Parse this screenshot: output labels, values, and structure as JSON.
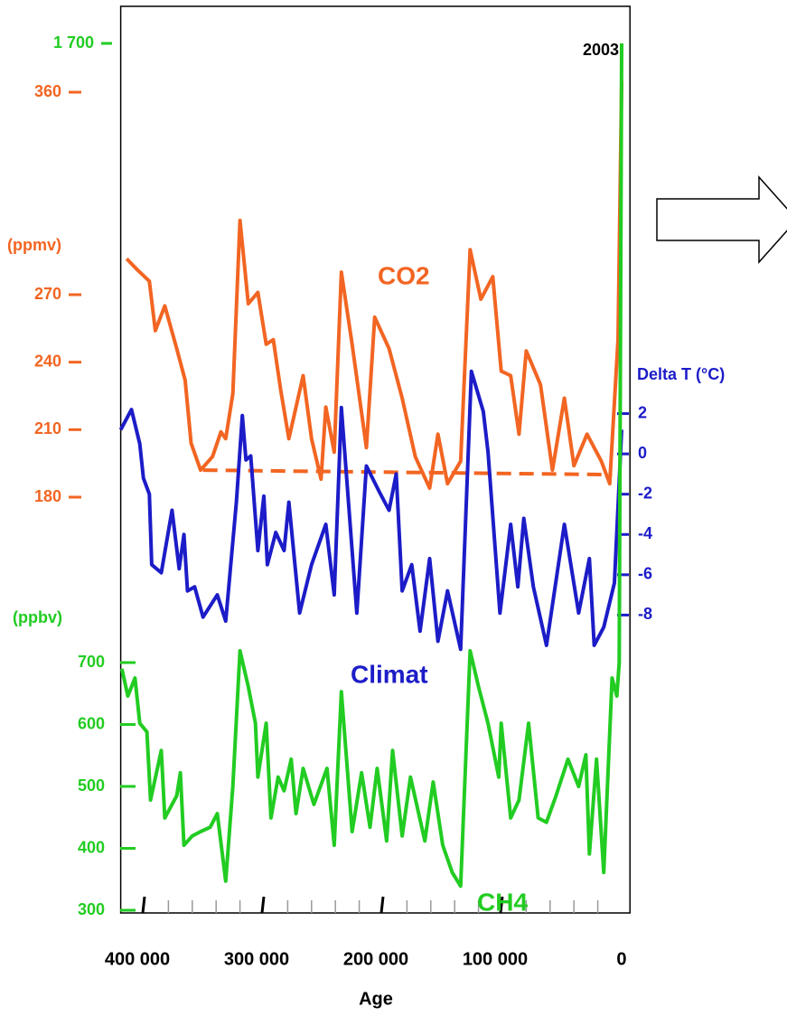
{
  "chart_data": {
    "type": "line",
    "x_label": "Age",
    "end_label": "2003",
    "xlim": [
      420000,
      -7000
    ],
    "xticks": [
      {
        "value": 400000,
        "label": "400 000"
      },
      {
        "value": 300000,
        "label": "300 000"
      },
      {
        "value": 200000,
        "label": "200 000"
      },
      {
        "value": 100000,
        "label": "100 000"
      },
      0
    ],
    "xminor_ticks": [
      380000,
      360000,
      340000,
      320000,
      280000,
      260000,
      240000,
      220000,
      180000,
      160000,
      140000,
      120000,
      80000,
      60000,
      40000,
      20000
    ],
    "axes": {
      "co2": {
        "unit_label": "(ppmv)",
        "ylim": [
          180,
          360
        ],
        "yticks": [
          180,
          210,
          240,
          270,
          360
        ]
      },
      "ch4": {
        "unit_label": "(ppbv)",
        "ylim": [
          300,
          1700
        ],
        "axis_break": 700,
        "yticks": [
          300,
          400,
          500,
          600,
          700,
          {
            "value": 1700,
            "label": "1 700"
          }
        ]
      },
      "temp": {
        "unit_label": "Delta T (°C)",
        "ylim": [
          -10,
          4
        ],
        "yticks": [
          2,
          0,
          -2,
          -4,
          -6,
          -8
        ]
      }
    },
    "series": [
      {
        "name": "CO2",
        "color": "#f26522",
        "axis": "co2",
        "x": [
          415000,
          406000,
          396000,
          391000,
          383000,
          373000,
          366000,
          361000,
          353000,
          343000,
          336000,
          332000,
          326000,
          320000,
          313000,
          305000,
          298000,
          292000,
          286000,
          279000,
          267000,
          260000,
          252000,
          248000,
          241000,
          235000,
          226000,
          214000,
          207000,
          195000,
          184000,
          173000,
          161000,
          154000,
          146000,
          135000,
          127000,
          118000,
          108000,
          101000,
          93000,
          86000,
          80000,
          68000,
          58000,
          48000,
          40000,
          29000,
          17000,
          10000,
          3000,
          0
        ],
        "values": [
          286,
          281,
          276,
          254,
          265,
          246,
          232,
          204,
          192,
          198,
          209,
          206,
          226,
          303,
          266,
          271,
          248,
          250,
          228,
          206,
          234,
          206,
          188,
          220,
          200,
          280,
          248,
          202,
          260,
          246,
          224,
          198,
          184,
          208,
          186,
          196,
          290,
          268,
          278,
          236,
          234,
          208,
          245,
          230,
          192,
          224,
          194,
          208,
          196,
          186,
          250,
          365
        ],
        "baseline_x": [
          351000,
          8000
        ],
        "baseline_values": [
          192,
          190
        ]
      },
      {
        "name": "Climat",
        "color": "#1c1cc8",
        "axis": "temp",
        "x": [
          420000,
          411000,
          404000,
          401000,
          396000,
          394000,
          386000,
          377000,
          371000,
          367000,
          364000,
          358000,
          351000,
          339000,
          332000,
          323000,
          318000,
          315000,
          311000,
          305000,
          300000,
          297000,
          290000,
          283000,
          279000,
          270000,
          260000,
          248000,
          241000,
          235000,
          222000,
          214000,
          203000,
          195000,
          189000,
          184000,
          176000,
          169000,
          161000,
          154000,
          146000,
          135000,
          126000,
          116000,
          112000,
          102000,
          93000,
          87000,
          82000,
          74000,
          63000,
          48000,
          36000,
          27000,
          23000,
          15000,
          6000,
          0
        ],
        "values": [
          1.2,
          2.2,
          0.5,
          -1.2,
          -2.0,
          -5.5,
          -5.9,
          -2.8,
          -5.7,
          -4.0,
          -6.8,
          -6.6,
          -8.1,
          -7.0,
          -8.3,
          -2.4,
          1.9,
          -0.3,
          -0.1,
          -4.8,
          -2.1,
          -5.5,
          -3.9,
          -4.8,
          -2.4,
          -7.9,
          -5.5,
          -3.5,
          -7.0,
          2.3,
          -7.9,
          -0.6,
          -1.9,
          -2.8,
          -1.0,
          -6.8,
          -5.5,
          -8.8,
          -5.2,
          -9.3,
          -6.8,
          -9.7,
          4.1,
          2.1,
          0.1,
          -7.9,
          -3.5,
          -6.6,
          -3.2,
          -6.6,
          -9.5,
          -3.5,
          -7.9,
          -5.2,
          -9.5,
          -8.6,
          -6.4,
          1.2
        ]
      },
      {
        "name": "CH4",
        "color": "#22cc22",
        "axis": "ch4",
        "x": [
          419000,
          414000,
          408000,
          404000,
          398000,
          395000,
          386000,
          383000,
          373000,
          370000,
          367000,
          360000,
          353000,
          345000,
          339000,
          332000,
          326000,
          320000,
          313000,
          307000,
          305000,
          298000,
          294000,
          288000,
          283000,
          277000,
          273000,
          267000,
          258000,
          247000,
          241000,
          235000,
          226000,
          218000,
          211000,
          205000,
          197000,
          192000,
          184000,
          177000,
          165000,
          158000,
          150000,
          142000,
          135000,
          127000,
          120000,
          112000,
          103000,
          101000,
          93000,
          86000,
          78000,
          70000,
          63000,
          55000,
          45000,
          36000,
          30000,
          27000,
          21000,
          15000,
          8000,
          4000,
          2000,
          0
        ],
        "values": [
          690,
          646,
          675,
          602,
          588,
          478,
          558,
          449,
          485,
          522,
          405,
          420,
          427,
          434,
          456,
          347,
          500,
          719,
          661,
          602,
          515,
          602,
          449,
          515,
          493,
          544,
          456,
          529,
          471,
          529,
          405,
          653,
          427,
          522,
          434,
          529,
          412,
          558,
          420,
          515,
          412,
          507,
          405,
          361,
          339,
          719,
          661,
          602,
          515,
          602,
          449,
          478,
          602,
          449,
          442,
          485,
          544,
          500,
          551,
          391,
          544,
          361,
          675,
          646,
          700,
          1700
        ]
      }
    ]
  }
}
